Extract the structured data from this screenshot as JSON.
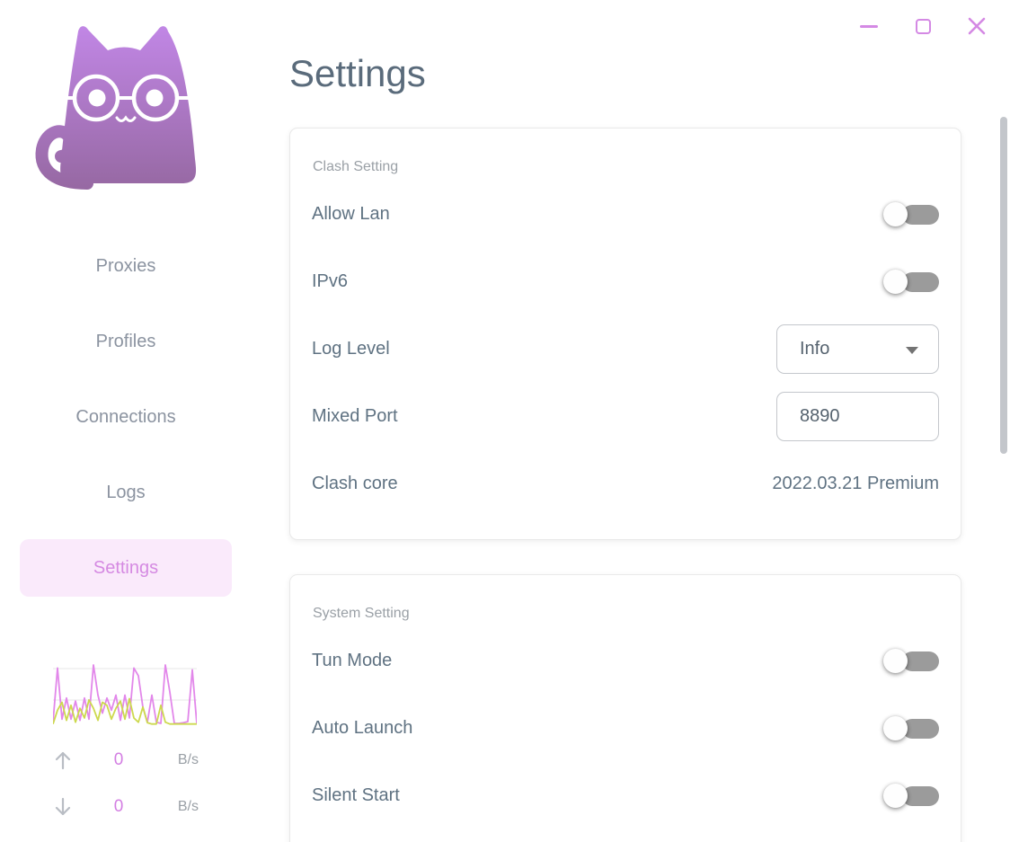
{
  "page": {
    "title": "Settings"
  },
  "window": {
    "accent_color": "#d489e4",
    "controls": [
      {
        "name": "minimize"
      },
      {
        "name": "maximize"
      },
      {
        "name": "close"
      }
    ]
  },
  "sidebar": {
    "logo": "clash-cat-logo",
    "active_item_bg": "#faeafb",
    "active_item_color": "#d58ae2",
    "items": [
      {
        "label": "Proxies",
        "active": false
      },
      {
        "label": "Profiles",
        "active": false
      },
      {
        "label": "Connections",
        "active": false
      },
      {
        "label": "Logs",
        "active": false
      },
      {
        "label": "Settings",
        "active": true
      }
    ],
    "traffic": {
      "up": {
        "value": "0",
        "unit": "B/s"
      },
      "down": {
        "value": "0",
        "unit": "B/s"
      }
    }
  },
  "cards": [
    {
      "title": "Clash Setting",
      "rows": [
        {
          "label": "Allow Lan",
          "type": "toggle",
          "value": "off"
        },
        {
          "label": "IPv6",
          "type": "toggle",
          "value": "off"
        },
        {
          "label": "Log Level",
          "type": "select",
          "value": "Info"
        },
        {
          "label": "Mixed Port",
          "type": "input",
          "value": "8890"
        },
        {
          "label": "Clash core",
          "type": "text",
          "value": "2022.03.21 Premium"
        }
      ]
    },
    {
      "title": "System Setting",
      "rows": [
        {
          "label": "Tun Mode",
          "type": "toggle",
          "value": "off"
        },
        {
          "label": "Auto Launch",
          "type": "toggle",
          "value": "off"
        },
        {
          "label": "Silent Start",
          "type": "toggle",
          "value": "off"
        }
      ]
    }
  ],
  "chart_data": {
    "type": "line",
    "title": "traffic-sparkline",
    "xlabel": "",
    "ylabel": "",
    "legend": false,
    "grid": true,
    "gridlines_y": [
      10,
      45
    ],
    "canvas": {
      "width": 160,
      "height": 74
    },
    "y_range": [
      0,
      1
    ],
    "series": [
      {
        "name": "traffic-line-magenta",
        "color": "#e287ea",
        "values": [
          0.05,
          0.95,
          0.1,
          0.45,
          0.1,
          0.4,
          0.08,
          0.45,
          0.1,
          1.0,
          0.5,
          0.2,
          0.45,
          0.25,
          0.5,
          0.08,
          0.5,
          0.12,
          0.95,
          0.82,
          0.3,
          0.05,
          0.5,
          0.05,
          0.03,
          1.0,
          0.55,
          0.03,
          0.03,
          0.04,
          0.06,
          0.92,
          0.03
        ]
      },
      {
        "name": "traffic-line-yellowgreen",
        "color": "#cdd94e",
        "values": [
          0.02,
          0.25,
          0.38,
          0.08,
          0.33,
          0.05,
          0.28,
          0.12,
          0.42,
          0.28,
          0.08,
          0.38,
          0.33,
          0.1,
          0.28,
          0.4,
          0.1,
          0.44,
          0.12,
          0.05,
          0.3,
          0.04,
          0.02,
          0.02,
          0.33,
          0.05,
          0.02,
          0.02,
          0.02,
          0.02,
          0.02,
          0.02,
          0.02
        ]
      }
    ],
    "gridline_color": "#ececec"
  }
}
